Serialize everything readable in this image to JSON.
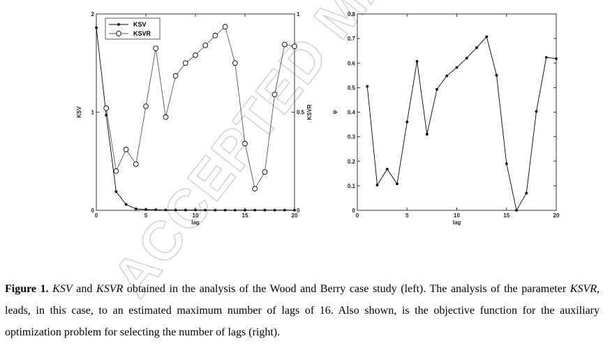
{
  "chart_data": [
    {
      "type": "line",
      "panel": "left",
      "x": [
        0,
        1,
        2,
        3,
        4,
        5,
        6,
        7,
        8,
        9,
        10,
        11,
        12,
        13,
        14,
        15,
        16,
        17,
        18,
        19,
        20
      ],
      "xlabel": "lag",
      "ylabel": "KSV",
      "ylabel_right": "KSVR",
      "xlim": [
        0,
        20
      ],
      "ylim": [
        0,
        2
      ],
      "ylim_right": [
        0,
        1
      ],
      "xticks": [
        "0",
        "5",
        "10",
        "15",
        "20"
      ],
      "yticks": [
        "0",
        "1",
        "2"
      ],
      "yticks_right": [
        "0",
        "0.5",
        "1"
      ],
      "legend_placement": "top-left",
      "series": [
        {
          "name": "KSV",
          "axis": "left",
          "marker": "dot",
          "values": [
            1.86,
            0.97,
            0.19,
            0.06,
            0.015,
            0.008,
            0.006,
            0.004,
            0.003,
            0.003,
            0.003,
            0.002,
            0.002,
            0.002,
            0.002,
            0.002,
            0.002,
            0.002,
            0.002,
            0.002,
            0.002
          ]
        },
        {
          "name": "KSVR",
          "axis": "right",
          "marker": "circle",
          "values": [
            null,
            0.52,
            0.2,
            0.31,
            0.235,
            0.53,
            0.825,
            0.475,
            0.685,
            0.75,
            0.79,
            0.84,
            0.89,
            0.935,
            0.75,
            0.34,
            0.11,
            0.195,
            0.59,
            0.845,
            0.835
          ]
        }
      ]
    },
    {
      "type": "line",
      "panel": "right",
      "x": [
        1,
        2,
        3,
        4,
        5,
        6,
        7,
        8,
        9,
        10,
        11,
        12,
        13,
        14,
        15,
        16,
        17,
        18,
        19,
        20
      ],
      "xlabel": "lag",
      "ylabel": "φ",
      "xlim": [
        0,
        20
      ],
      "ylim": [
        0,
        0.8
      ],
      "xticks": [
        "0",
        "5",
        "10",
        "15",
        "20"
      ],
      "yticks": [
        "0",
        "0.1",
        "0.2",
        "0.3",
        "0.4",
        "0.5",
        "0.6",
        "0.7",
        "0.8"
      ],
      "series": [
        {
          "marker": "dot",
          "values": [
            0.505,
            0.103,
            0.168,
            0.108,
            0.36,
            0.607,
            0.31,
            0.493,
            0.548,
            0.582,
            0.62,
            0.663,
            0.707,
            0.55,
            0.19,
            0.0,
            0.07,
            0.403,
            0.623,
            0.618
          ]
        }
      ]
    }
  ],
  "colors": {
    "ksv_line": "#000000",
    "ksvr_line": "#555555",
    "axis": "#333333",
    "watermark": "#d6d6d6"
  },
  "watermark": "ACCEPTED MANUSCRIPT",
  "caption": {
    "label": "Figure 1.",
    "t1": "KSV",
    "t2": " and ",
    "t3": "KSVR",
    "t4": " obtained in the analysis of the Wood and Berry case study (left). The analysis of the parameter ",
    "t5": "KSVR",
    "t6": ", leads, in this case, to an estimated maximum number of lags of 16. Also shown, is the objective function for the auxiliary optimization problem for selecting the number of lags (right)."
  }
}
